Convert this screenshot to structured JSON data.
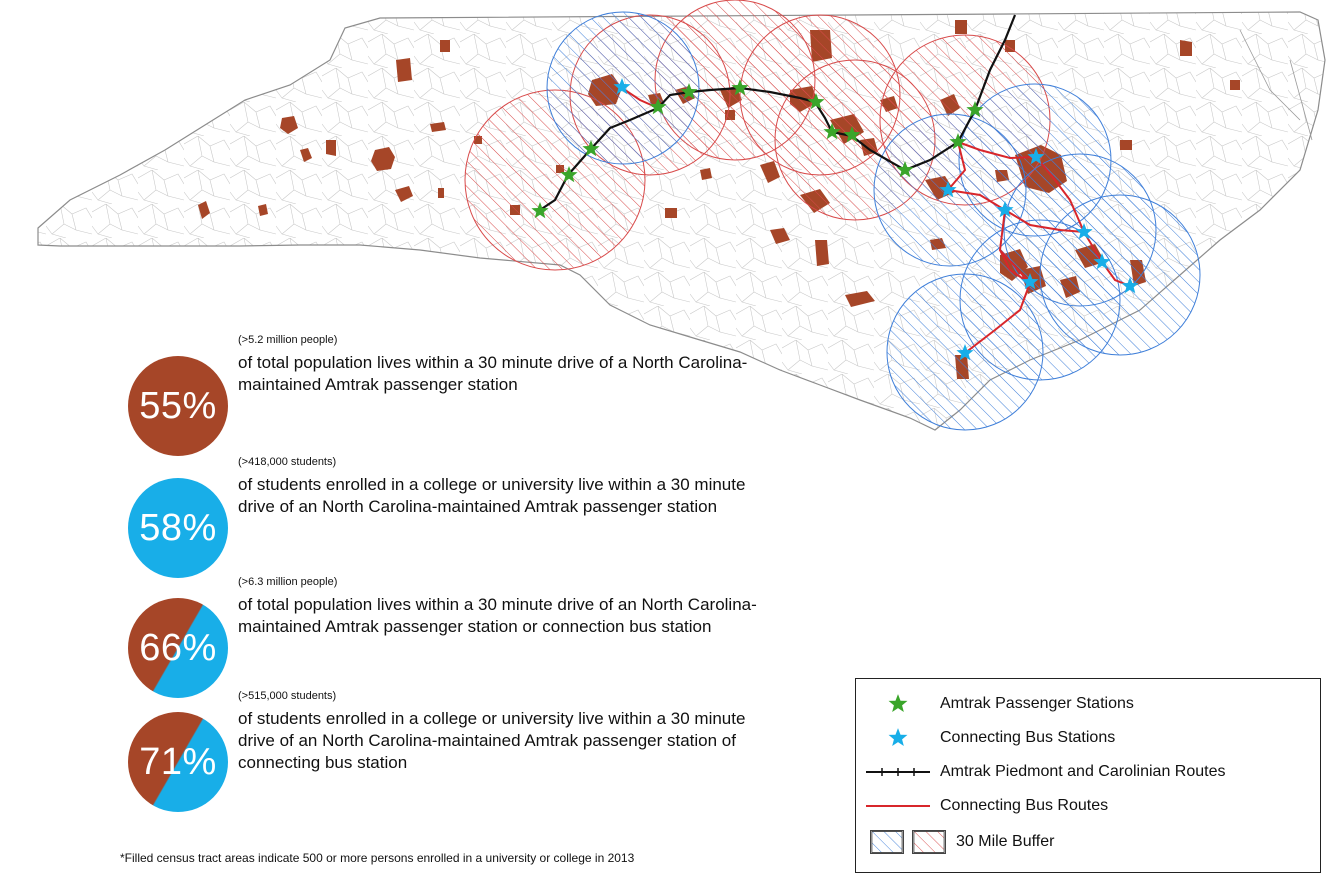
{
  "stats": [
    {
      "percent": "55%",
      "sub": "(>5.2 million people)",
      "desc": "of total population lives within a 30 minute drive of a North Carolina-maintained Amtrak passenger station"
    },
    {
      "percent": "58%",
      "sub": "(>418,000 students)",
      "desc": "of students enrolled in a college or university live within a 30 minute drive of an North Carolina-maintained Amtrak passenger station"
    },
    {
      "percent": "66%",
      "sub": "(>6.3 million people)",
      "desc": "of total population lives within a 30 minute drive of an North Carolina-maintained Amtrak passenger station or connection bus station"
    },
    {
      "percent": "71%",
      "sub": "(>515,000 students)",
      "desc": "of students enrolled in a college or university live within a 30 minute drive of an North Carolina-maintained Amtrak passenger station of connecting bus station"
    }
  ],
  "legend": {
    "amtrak_stations": "Amtrak Passenger Stations",
    "bus_stations": "Connecting Bus Stations",
    "amtrak_routes": "Amtrak Piedmont and Carolinian Routes",
    "bus_routes": "Connecting Bus Routes",
    "buffer": "30 Mile Buffer"
  },
  "footnote": "*Filled census tract areas indicate 500 or more persons enrolled in a university or college in 2013",
  "colors": {
    "rust": "#a64628",
    "blue": "#18aee8",
    "amtrak_star": "#3aa52a",
    "bus_star": "#18aee8",
    "bus_route": "#d8262b",
    "buffer_blue": "#3f7fd9",
    "buffer_red": "#d84a4a"
  }
}
